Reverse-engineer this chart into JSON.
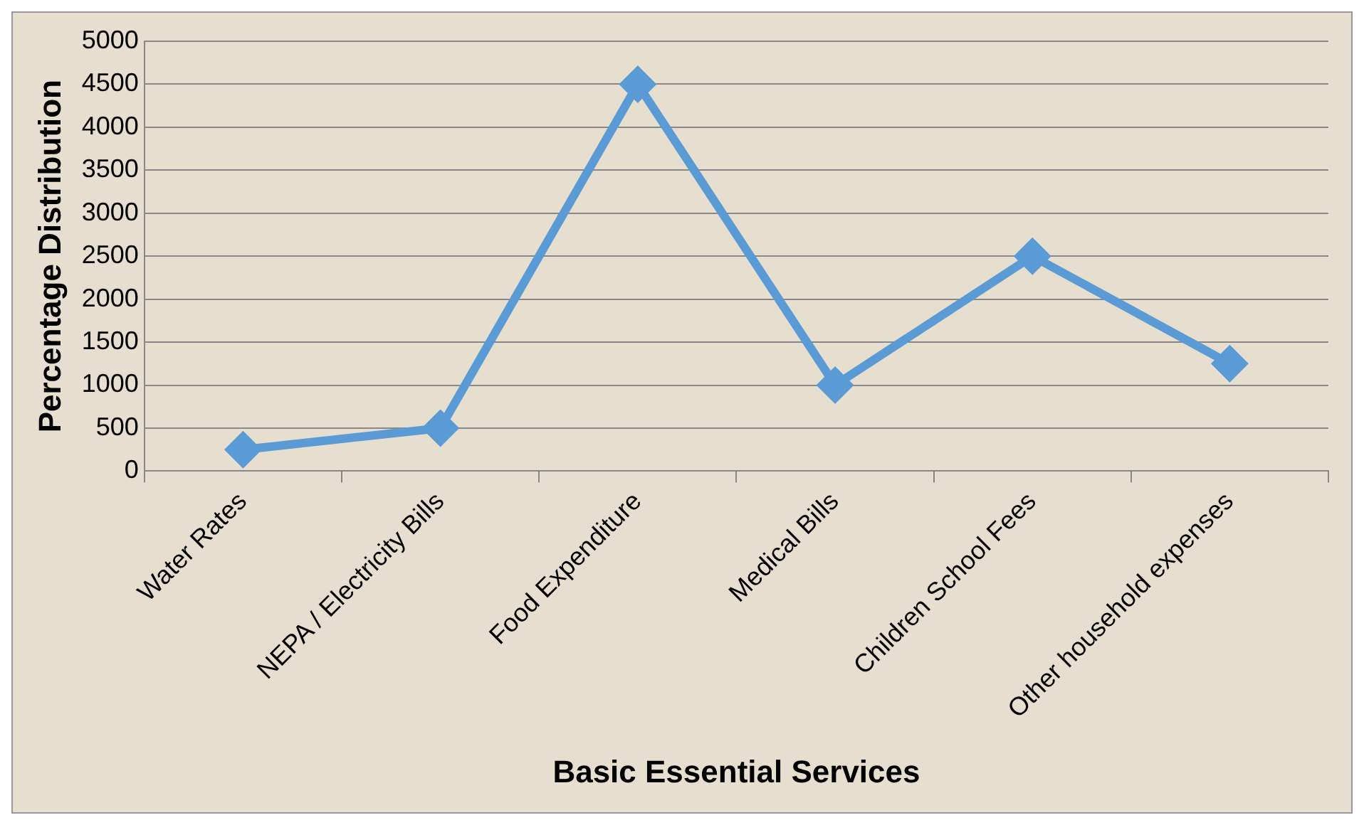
{
  "chart_data": {
    "type": "line",
    "xlabel": "Basic Essential Services",
    "ylabel": "Percentage Distribution",
    "categories": [
      "Water Rates",
      "NEPA / Electricity Bills",
      "Food Expenditure",
      "Medical Bills",
      "Children School Fees",
      "Other household expenses"
    ],
    "series": [
      {
        "color": "#5b9bd5",
        "values": [
          250,
          500,
          4500,
          1000,
          2500,
          1250
        ]
      }
    ],
    "ylim": [
      0,
      5000
    ],
    "yticks": [
      0,
      500,
      1000,
      1500,
      2000,
      2500,
      3000,
      3500,
      4000,
      4500,
      5000
    ],
    "grid": "y",
    "legend": false,
    "marker": "diamond",
    "line_style": "solid"
  }
}
